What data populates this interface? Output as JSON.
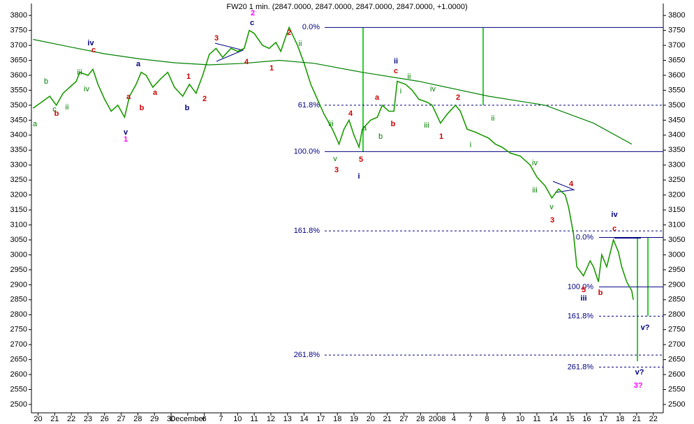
{
  "chart_data": {
    "type": "line",
    "title": "FW20 1 min. (2847.0000, 2847.0000, 2847.0000, 2847.0000, +1.0000)",
    "xlim": [
      -0.4,
      37.6
    ],
    "ylim": [
      2472,
      3840
    ],
    "yticks": [
      2500,
      2550,
      2600,
      2650,
      2700,
      2750,
      2800,
      2850,
      2900,
      2950,
      3000,
      3050,
      3100,
      3150,
      3200,
      3250,
      3300,
      3350,
      3400,
      3450,
      3500,
      3550,
      3600,
      3650,
      3700,
      3750,
      3800
    ],
    "xticks": [
      {
        "value": 0,
        "label": "20"
      },
      {
        "value": 1,
        "label": "21"
      },
      {
        "value": 2,
        "label": "22"
      },
      {
        "value": 3,
        "label": "23"
      },
      {
        "value": 4,
        "label": "26"
      },
      {
        "value": 5,
        "label": "27"
      },
      {
        "value": 6,
        "label": "28"
      },
      {
        "value": 7,
        "label": "29"
      },
      {
        "value": 8,
        "label": "30"
      },
      {
        "value": 9,
        "label": "December"
      },
      {
        "value": 10,
        "label": "6"
      },
      {
        "value": 11,
        "label": "7"
      },
      {
        "value": 12,
        "label": "10"
      },
      {
        "value": 13,
        "label": "11"
      },
      {
        "value": 14,
        "label": "12"
      },
      {
        "value": 15,
        "label": "13"
      },
      {
        "value": 16,
        "label": "14"
      },
      {
        "value": 17,
        "label": "17"
      },
      {
        "value": 18,
        "label": "18"
      },
      {
        "value": 19,
        "label": "19"
      },
      {
        "value": 20,
        "label": "20"
      },
      {
        "value": 21,
        "label": "21"
      },
      {
        "value": 22,
        "label": "27"
      },
      {
        "value": 23,
        "label": "28"
      },
      {
        "value": 24,
        "label": "2008"
      },
      {
        "value": 25,
        "label": "4"
      },
      {
        "value": 26,
        "label": "7"
      },
      {
        "value": 27,
        "label": "8"
      },
      {
        "value": 28,
        "label": "9"
      },
      {
        "value": 29,
        "label": "10"
      },
      {
        "value": 30,
        "label": "11"
      },
      {
        "value": 31,
        "label": "14"
      },
      {
        "value": 32,
        "label": "15"
      },
      {
        "value": 33,
        "label": "16"
      },
      {
        "value": 34,
        "label": "17"
      },
      {
        "value": 35,
        "label": "18"
      },
      {
        "value": 36,
        "label": "21"
      },
      {
        "value": 37,
        "label": "22"
      }
    ],
    "series": [
      {
        "color": "#1a9a00",
        "x": [
          -0.3,
          0.2,
          0.7,
          1.1,
          1.5,
          1.9,
          2.3,
          2.5,
          3.0,
          3.3,
          3.6,
          4.0,
          4.4,
          4.8,
          5.2,
          5.5,
          5.9,
          6.2,
          6.5,
          6.9,
          7.4,
          7.8,
          8.2,
          8.7,
          9.1,
          9.5,
          9.9,
          10.3,
          10.7,
          11.1,
          11.6,
          12.0,
          12.4,
          12.7,
          13.0,
          13.5,
          13.9,
          14.3,
          14.6,
          14.9,
          15.1,
          15.6,
          16.0,
          16.4,
          16.8,
          17.2,
          17.7,
          18.1,
          18.4,
          18.7,
          19.0,
          19.3,
          19.5,
          20.0,
          20.4,
          20.7,
          21.1,
          21.4,
          21.6,
          22.1,
          22.5,
          22.9,
          23.4,
          23.7,
          24.2,
          24.6,
          25.1,
          25.4,
          25.8,
          26.3,
          26.7,
          27.1,
          27.5,
          27.9,
          28.4,
          29.0,
          29.6,
          30.0,
          30.5,
          30.9,
          31.3,
          31.7,
          31.9,
          32.2,
          32.4,
          32.8,
          33.2,
          33.4,
          33.7,
          33.9,
          34.2,
          34.6,
          34.9,
          35.1,
          35.4,
          35.7,
          35.8
        ],
        "values": [
          3490,
          3510,
          3530,
          3500,
          3540,
          3560,
          3580,
          3610,
          3600,
          3620,
          3570,
          3520,
          3480,
          3500,
          3460,
          3530,
          3570,
          3610,
          3600,
          3560,
          3590,
          3610,
          3560,
          3530,
          3570,
          3540,
          3600,
          3670,
          3690,
          3660,
          3690,
          3680,
          3690,
          3750,
          3740,
          3700,
          3690,
          3710,
          3680,
          3730,
          3760,
          3700,
          3640,
          3570,
          3520,
          3470,
          3420,
          3370,
          3420,
          3450,
          3400,
          3360,
          3420,
          3450,
          3460,
          3500,
          3480,
          3480,
          3580,
          3570,
          3550,
          3520,
          3510,
          3500,
          3440,
          3470,
          3500,
          3480,
          3420,
          3410,
          3400,
          3390,
          3370,
          3360,
          3340,
          3330,
          3300,
          3260,
          3230,
          3190,
          3220,
          3200,
          3160,
          3070,
          2960,
          2930,
          2980,
          2960,
          2910,
          3000,
          2960,
          3050,
          3010,
          2960,
          2910,
          2880,
          2850
        ]
      },
      {
        "color": "#008000",
        "x": [
          -0.3,
          1.9,
          4.0,
          6.1,
          8.2,
          10.3,
          12.4,
          14.5,
          16.6,
          19.5,
          22.9,
          27.1,
          30.5,
          33.4,
          35.7
        ],
        "values": [
          3720,
          3695,
          3672,
          3655,
          3642,
          3635,
          3640,
          3650,
          3640,
          3610,
          3580,
          3530,
          3500,
          3440,
          3370
        ]
      }
    ],
    "levels": [
      {
        "label": "0.0%",
        "value": 3760,
        "dashed": false
      },
      {
        "label": "61.8%",
        "value": 3500,
        "dashed": true
      },
      {
        "label": "100.0%",
        "value": 3345,
        "dashed": false
      },
      {
        "label": "161.8%",
        "value": 3080,
        "dashed": true
      },
      {
        "label": "261.8%",
        "value": 2665,
        "dashed": true
      },
      {
        "label": "0.0%",
        "value": 3058,
        "dashed": false
      },
      {
        "label": "100.0%",
        "value": 2893,
        "dashed": false
      },
      {
        "label": "161.8%",
        "value": 2795,
        "dashed": true
      },
      {
        "label": "261.8%",
        "value": 2625,
        "dashed": true
      }
    ],
    "annotations": [
      {
        "text": "a",
        "color": "#008000"
      },
      {
        "text": "b",
        "color": "#cc0000"
      },
      {
        "text": "c",
        "color": "#008000"
      },
      {
        "text": "b",
        "color": "#008000"
      },
      {
        "text": "ii",
        "color": "#008000"
      },
      {
        "text": "iii",
        "color": "#008000"
      },
      {
        "text": "iv",
        "color": "#000080"
      },
      {
        "text": "c",
        "color": "#cc0000"
      },
      {
        "text": "iv",
        "color": "#008000"
      },
      {
        "text": "v",
        "color": "#000080"
      },
      {
        "text": "1",
        "color": "#ff00ff"
      },
      {
        "text": "a",
        "color": "#cc0000"
      },
      {
        "text": "b",
        "color": "#cc0000"
      },
      {
        "text": "a",
        "color": "#000080"
      },
      {
        "text": "a",
        "color": "#cc0000"
      },
      {
        "text": "1",
        "color": "#cc0000"
      },
      {
        "text": "2",
        "color": "#cc0000"
      },
      {
        "text": "b",
        "color": "#000080"
      },
      {
        "text": "3",
        "color": "#cc0000"
      },
      {
        "text": "4",
        "color": "#cc0000"
      },
      {
        "text": "2",
        "color": "#ff00ff"
      },
      {
        "text": "c",
        "color": "#000080"
      },
      {
        "text": "1",
        "color": "#cc0000"
      },
      {
        "text": "2",
        "color": "#cc0000"
      },
      {
        "text": "ii",
        "color": "#008000"
      },
      {
        "text": "iii",
        "color": "#008000"
      },
      {
        "text": "4",
        "color": "#cc0000"
      },
      {
        "text": "v",
        "color": "#008000"
      },
      {
        "text": "3",
        "color": "#cc0000"
      },
      {
        "text": "5",
        "color": "#cc0000"
      },
      {
        "text": "i",
        "color": "#000080"
      },
      {
        "text": "a",
        "color": "#008000"
      },
      {
        "text": "a",
        "color": "#cc0000"
      },
      {
        "text": "b",
        "color": "#008000"
      },
      {
        "text": "b",
        "color": "#cc0000"
      },
      {
        "text": "ii",
        "color": "#000080"
      },
      {
        "text": "c",
        "color": "#cc0000"
      },
      {
        "text": "ii",
        "color": "#008000"
      },
      {
        "text": "i",
        "color": "#008000"
      },
      {
        "text": "iv",
        "color": "#008000"
      },
      {
        "text": "iii",
        "color": "#008000"
      },
      {
        "text": "2",
        "color": "#cc0000"
      },
      {
        "text": "1",
        "color": "#cc0000"
      },
      {
        "text": "i",
        "color": "#008000"
      },
      {
        "text": "ii",
        "color": "#008000"
      },
      {
        "text": "iv",
        "color": "#008000"
      },
      {
        "text": "iii",
        "color": "#008000"
      },
      {
        "text": "v",
        "color": "#008000"
      },
      {
        "text": "3",
        "color": "#cc0000"
      },
      {
        "text": "4",
        "color": "#cc0000"
      },
      {
        "text": "iv",
        "color": "#000080"
      },
      {
        "text": "c",
        "color": "#cc0000"
      },
      {
        "text": "5",
        "color": "#cc0000"
      },
      {
        "text": "iii",
        "color": "#000080"
      },
      {
        "text": "b",
        "color": "#cc0000"
      },
      {
        "text": "v?",
        "color": "#000080"
      },
      {
        "text": "v?",
        "color": "#000080"
      },
      {
        "text": "3?",
        "color": "#ff00ff"
      }
    ]
  }
}
